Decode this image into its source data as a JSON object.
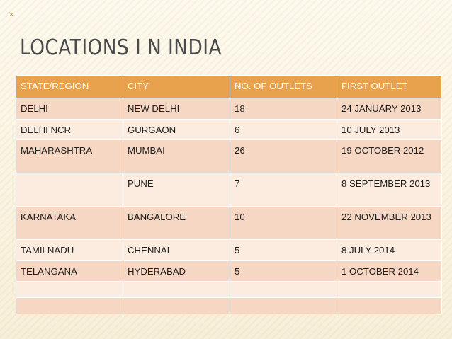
{
  "slide": {
    "title": "LOCATIONS I N INDIA",
    "corner_mark": "×"
  },
  "table": {
    "headers": [
      "STATE/REGION",
      "CITY",
      "NO. OF OUTLETS",
      "FIRST OUTLET"
    ],
    "rows": [
      [
        "DELHI",
        "NEW DELHI",
        "18",
        "24 JANUARY 2013"
      ],
      [
        "DELHI NCR",
        "GURGAON",
        "6",
        "10 JULY 2013"
      ],
      [
        "MAHARASHTRA",
        "MUMBAI",
        "26",
        "19 OCTOBER 2012"
      ],
      [
        "",
        "PUNE",
        "7",
        "8 SEPTEMBER 2013"
      ],
      [
        "KARNATAKA",
        "BANGALORE",
        "10",
        "22 NOVEMBER 2013"
      ],
      [
        "TAMILNADU",
        "CHENNAI",
        "5",
        "8 JULY 2014"
      ],
      [
        "TELANGANA",
        "HYDERABAD",
        "5",
        "1 OCTOBER 2014"
      ],
      [
        "",
        "",
        "",
        ""
      ],
      [
        "",
        "",
        "",
        ""
      ]
    ]
  },
  "colors": {
    "header": "#e8a24e",
    "row_dark": "#f6d7c3",
    "row_light": "#fbecdf",
    "title_text": "#4a4a4a"
  }
}
